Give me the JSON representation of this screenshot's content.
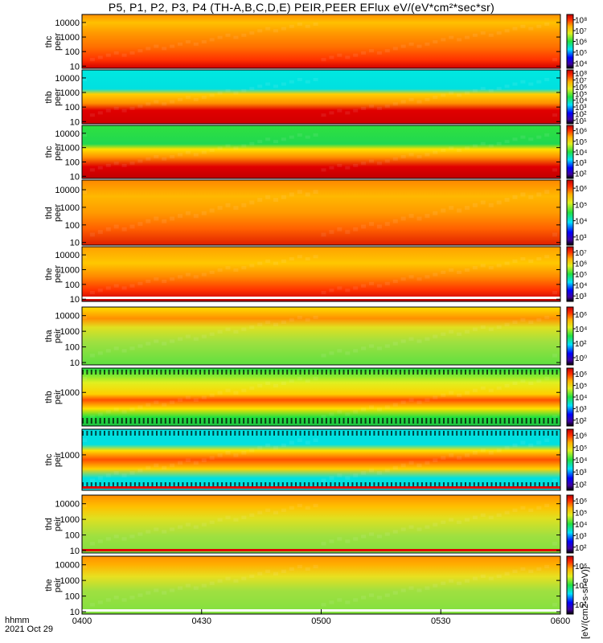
{
  "title": "P5, P1, P2, P3, P4 (TH-A,B,C,D,E) PEIR,PEER EFlux eV/(eV*cm²*sec*sr)",
  "colorbar_unit_label": "[eV/(cm2-s-sr-eV)]",
  "xaxis": {
    "prefix": "hhmm",
    "date": "2021 Oct 29",
    "ticks": [
      "0400",
      "0430",
      "0500",
      "0530",
      "0600"
    ]
  },
  "chart_data": [
    {
      "type": "heatmap",
      "panel": "thc peer",
      "ylabel_line1": "thc",
      "ylabel_line2": "peer",
      "x_range": [
        "0400",
        "0600"
      ],
      "y_scale": "log",
      "yticks": [
        "10",
        "100",
        "1000",
        "10000"
      ],
      "colorbar_ticks": [
        "10⁴",
        "10⁵",
        "10⁶",
        "10⁷",
        "10⁸"
      ],
      "dominant_colors": [
        "#ff8a00",
        "#ffd000",
        "#d80000"
      ]
    },
    {
      "type": "heatmap",
      "panel": "thb peer",
      "ylabel_line1": "thb",
      "ylabel_line2": "peer",
      "x_range": [
        "0400",
        "0600"
      ],
      "y_scale": "log",
      "yticks": [
        "10",
        "100",
        "1000",
        "10000"
      ],
      "colorbar_ticks": [
        "10¹",
        "10²",
        "10³",
        "10⁴",
        "10⁵",
        "10⁶",
        "10⁷",
        "10⁸"
      ],
      "dominant_colors": [
        "#00e0e0",
        "#ffd000",
        "#d80000"
      ]
    },
    {
      "type": "heatmap",
      "panel": "thc peer",
      "ylabel_line1": "thc",
      "ylabel_line2": "peer",
      "x_range": [
        "0400",
        "0600"
      ],
      "y_scale": "log",
      "yticks": [
        "10",
        "100",
        "1000",
        "10000"
      ],
      "colorbar_ticks": [
        "10²",
        "10³",
        "10⁴",
        "10⁵",
        "10⁶"
      ],
      "dominant_colors": [
        "#20e040",
        "#ffd000",
        "#d80000"
      ]
    },
    {
      "type": "heatmap",
      "panel": "thd peer",
      "ylabel_line1": "thd",
      "ylabel_line2": "peer",
      "x_range": [
        "0400",
        "0600"
      ],
      "y_scale": "log",
      "yticks": [
        "10",
        "100",
        "1000",
        "10000"
      ],
      "colorbar_ticks": [
        "10³",
        "10⁴",
        "10⁵",
        "10⁶"
      ],
      "dominant_colors": [
        "#ff8a00",
        "#ffd000",
        "#e02000"
      ]
    },
    {
      "type": "heatmap",
      "panel": "the peer",
      "ylabel_line1": "the",
      "ylabel_line2": "peer",
      "x_range": [
        "0400",
        "0600"
      ],
      "y_scale": "log",
      "yticks": [
        "10",
        "100",
        "1000",
        "10000"
      ],
      "colorbar_ticks": [
        "10³",
        "10⁴",
        "10⁵",
        "10⁶",
        "10⁷"
      ],
      "dominant_colors": [
        "#ff8a00",
        "#ffd000",
        "#d80000"
      ]
    },
    {
      "type": "heatmap",
      "panel": "tha peir",
      "ylabel_line1": "tha",
      "ylabel_line2": "peir",
      "x_range": [
        "0400",
        "0600"
      ],
      "y_scale": "log",
      "yticks": [
        "10",
        "100",
        "1000",
        "10000"
      ],
      "colorbar_ticks": [
        "10⁰",
        "10²",
        "10⁴",
        "10⁶"
      ],
      "dominant_colors": [
        "#a0e040",
        "#ffd000",
        "#ff8a00"
      ]
    },
    {
      "type": "heatmap",
      "panel": "thb peir",
      "ylabel_line1": "thb",
      "ylabel_line2": "peir",
      "x_range": [
        "0400",
        "0600"
      ],
      "y_scale": "log",
      "yticks": [
        "1000"
      ],
      "colorbar_ticks": [
        "10²",
        "10³",
        "10⁴",
        "10⁵",
        "10⁶"
      ],
      "dominant_colors": [
        "#20e040",
        "#ffd000",
        "#ff5000"
      ]
    },
    {
      "type": "heatmap",
      "panel": "thc peir",
      "ylabel_line1": "thc",
      "ylabel_line2": "peir",
      "x_range": [
        "0400",
        "0600"
      ],
      "y_scale": "log",
      "yticks": [
        "1000"
      ],
      "colorbar_ticks": [
        "10²",
        "10³",
        "10⁴",
        "10⁵",
        "10⁶"
      ],
      "dominant_colors": [
        "#00e0e0",
        "#ffd000",
        "#ff5000"
      ]
    },
    {
      "type": "heatmap",
      "panel": "thd peir",
      "ylabel_line1": "thd",
      "ylabel_line2": "peir",
      "x_range": [
        "0400",
        "0600"
      ],
      "y_scale": "log",
      "yticks": [
        "10",
        "100",
        "1000",
        "10000"
      ],
      "colorbar_ticks": [
        "10²",
        "10³",
        "10⁴",
        "10⁵",
        "10⁶"
      ],
      "dominant_colors": [
        "#a0e040",
        "#ffd000",
        "#ff8a00"
      ]
    },
    {
      "type": "heatmap",
      "panel": "the peir",
      "ylabel_line1": "the",
      "ylabel_line2": "peir",
      "x_range": [
        "0400",
        "0600"
      ],
      "y_scale": "log",
      "yticks": [
        "10",
        "100",
        "1000",
        "10000"
      ],
      "colorbar_ticks": [
        "10²",
        "10⁴",
        "10⁶"
      ],
      "dominant_colors": [
        "#a0e040",
        "#ffd000",
        "#ff8a00"
      ]
    }
  ]
}
